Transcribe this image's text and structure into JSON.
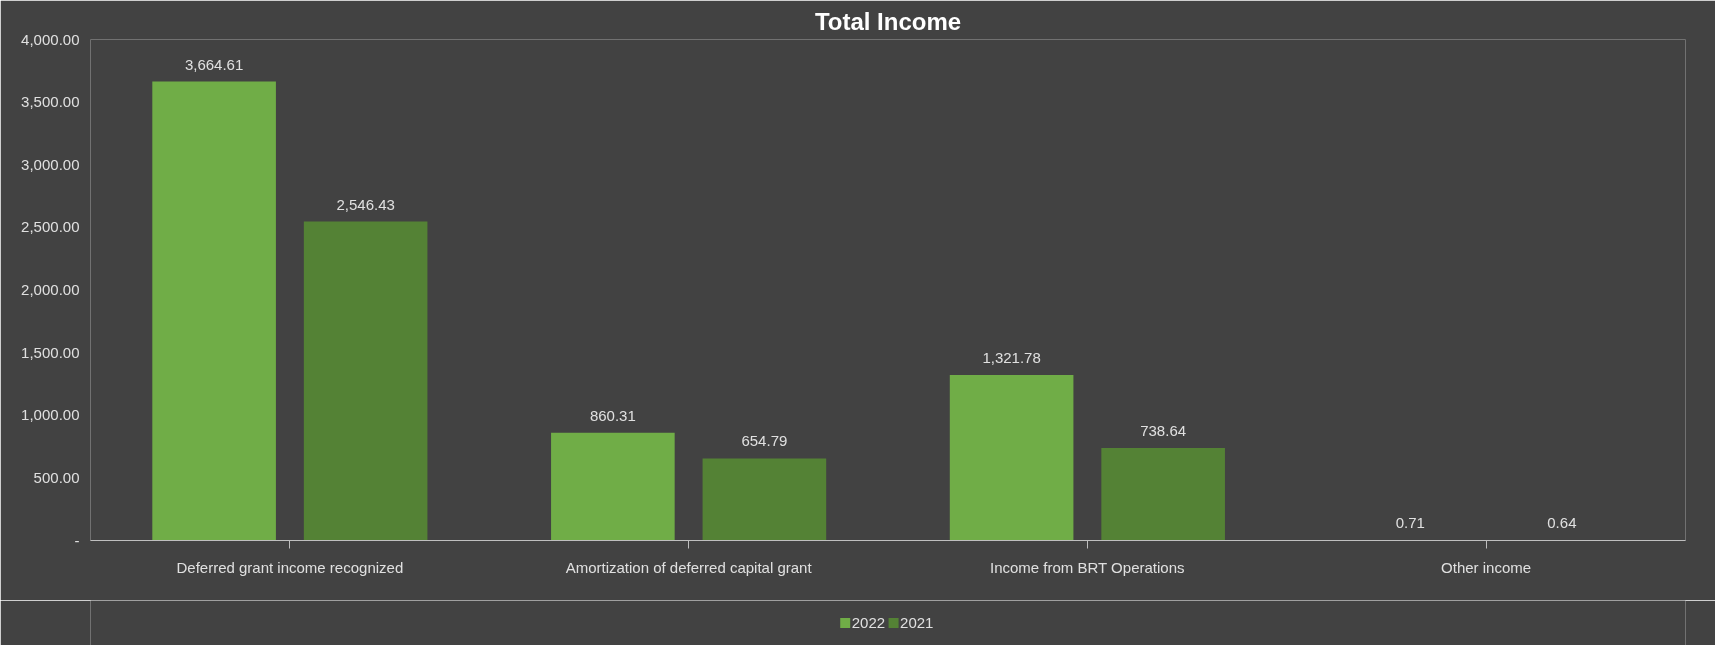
{
  "chart_data": {
    "type": "bar",
    "title": "Total Income",
    "categories": [
      "Deferred grant income recognized",
      "Amortization of deferred capital grant",
      "Income from BRT Operations",
      "Other income"
    ],
    "series": [
      {
        "name": "2022",
        "color": "#70ad47",
        "values": [
          3664.61,
          860.31,
          1321.78,
          0.71
        ]
      },
      {
        "name": "2021",
        "color": "#548235",
        "values": [
          2546.43,
          654.79,
          738.64,
          0.64
        ]
      }
    ],
    "ylim": [
      0,
      4000
    ],
    "yticks": [
      {
        "value": 0,
        "label": "-"
      },
      {
        "value": 500,
        "label": "500.00"
      },
      {
        "value": 1000,
        "label": "1,000.00"
      },
      {
        "value": 1500,
        "label": "1,500.00"
      },
      {
        "value": 2000,
        "label": "2,000.00"
      },
      {
        "value": 2500,
        "label": "2,500.00"
      },
      {
        "value": 3000,
        "label": "3,000.00"
      },
      {
        "value": 3500,
        "label": "3,500.00"
      },
      {
        "value": 4000,
        "label": "4,000.00"
      }
    ],
    "value_labels": [
      [
        "3,664.61",
        "860.31",
        "1,321.78",
        "0.71"
      ],
      [
        "2,546.43",
        "654.79",
        "738.64",
        "0.64"
      ]
    ],
    "grid": false,
    "legend": "bottom"
  }
}
